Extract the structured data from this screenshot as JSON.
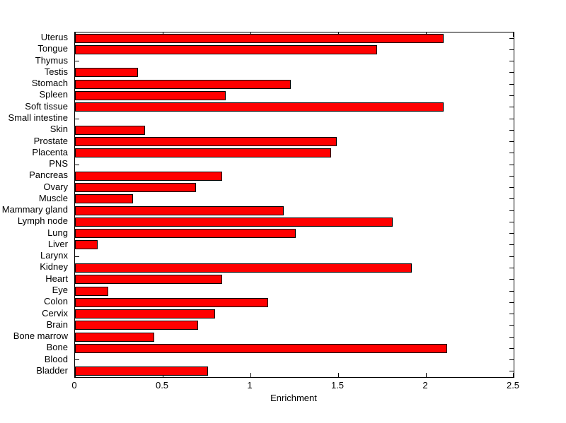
{
  "chart_data": {
    "type": "bar",
    "orientation": "horizontal",
    "title": "",
    "xlabel": "Enrichment",
    "ylabel": "",
    "xlim": [
      0,
      2.5
    ],
    "xticks": [
      0,
      0.5,
      1,
      1.5,
      2,
      2.5
    ],
    "xtick_labels": [
      "0",
      "0.5",
      "1",
      "1.5",
      "2",
      "2.5"
    ],
    "grid": false,
    "legend": null,
    "bar_color": "#FF0000",
    "bar_edge_color": "#000000",
    "categories_order": "top-to-bottom",
    "categories": [
      "Uterus",
      "Tongue",
      "Thymus",
      "Testis",
      "Stomach",
      "Spleen",
      "Soft tissue",
      "Small intestine",
      "Skin",
      "Prostate",
      "Placenta",
      "PNS",
      "Pancreas",
      "Ovary",
      "Muscle",
      "Mammary gland",
      "Lymph node",
      "Lung",
      "Liver",
      "Larynx",
      "Kidney",
      "Heart",
      "Eye",
      "Colon",
      "Cervix",
      "Brain",
      "Bone marrow",
      "Bone",
      "Blood",
      "Bladder"
    ],
    "values": [
      2.1,
      1.72,
      0,
      0.36,
      1.23,
      0.86,
      2.1,
      0,
      0.4,
      1.49,
      1.46,
      0,
      0.84,
      0.69,
      0.33,
      1.19,
      1.81,
      1.26,
      0.13,
      0,
      1.92,
      0.84,
      0.19,
      1.1,
      0.8,
      0.7,
      0.45,
      2.12,
      0,
      0.76
    ]
  }
}
